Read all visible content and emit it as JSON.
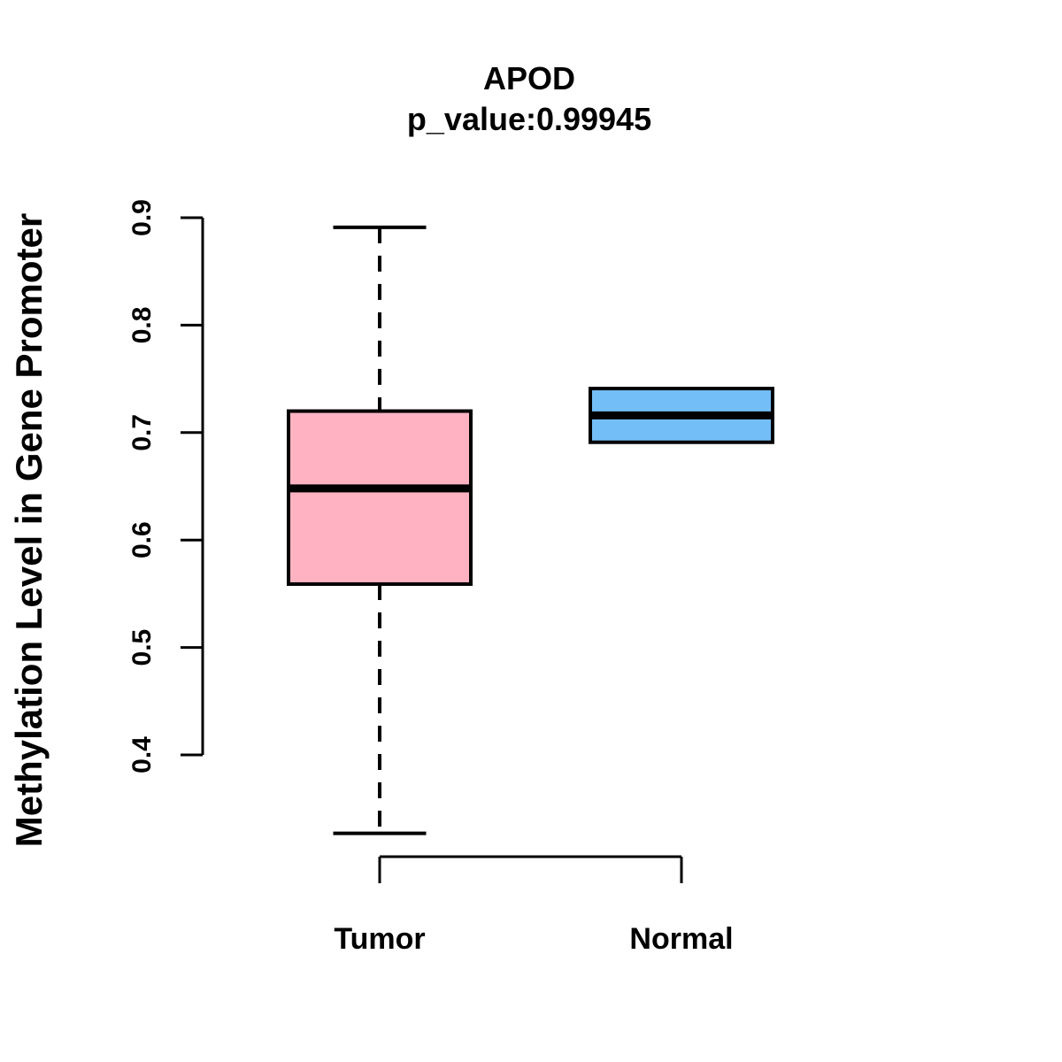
{
  "title": "APOD",
  "subtitle": "p_value:0.99945",
  "y_axis_label": "Methylation Level in Gene Promoter",
  "chart_data": {
    "type": "boxplot",
    "title": "APOD",
    "subtitle": "p_value:0.99945",
    "ylabel": "Methylation Level in Gene Promoter",
    "xlabel": "",
    "categories": [
      "Tumor",
      "Normal"
    ],
    "series": [
      {
        "name": "Tumor",
        "color": "#FFB3C2",
        "whisker_low": 0.327,
        "q1": 0.559,
        "median": 0.648,
        "q3": 0.72,
        "whisker_high": 0.891
      },
      {
        "name": "Normal",
        "color": "#74BEF7",
        "whisker_low": 0.691,
        "q1": 0.691,
        "median": 0.716,
        "q3": 0.741,
        "whisker_high": 0.741
      }
    ],
    "y_ticks": [
      0.4,
      0.5,
      0.6,
      0.7,
      0.8,
      0.9
    ],
    "y_axis_range": [
      0.4,
      0.9
    ],
    "grid": false,
    "legend_position": "none",
    "colors": {
      "stroke": "#000000",
      "background": "#ffffff"
    }
  }
}
